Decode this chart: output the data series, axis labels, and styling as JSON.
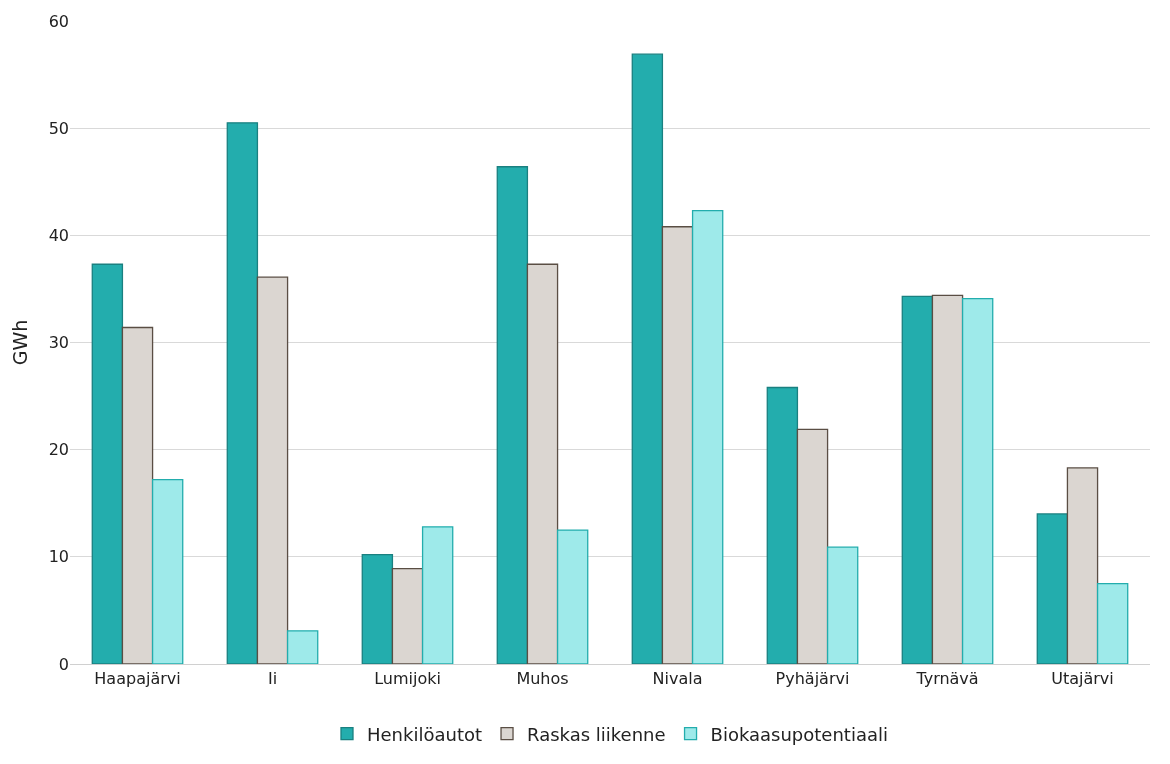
{
  "chart_data": {
    "type": "bar",
    "ylabel": "GWh",
    "categories": [
      "Haapajärvi",
      "Ii",
      "Lumijoki",
      "Muhos",
      "Nivala",
      "Pyhäjärvi",
      "Tyrnävä",
      "Utajärvi"
    ],
    "series": [
      {
        "name": "Henkilöautot",
        "color": "#23adad",
        "values": [
          37.3,
          50.5,
          10.2,
          46.4,
          56.9,
          25.8,
          34.3,
          14.0
        ]
      },
      {
        "name": "Raskas liikenne",
        "color": "#dbd6d1",
        "values": [
          31.4,
          36.1,
          8.9,
          37.3,
          40.8,
          21.9,
          34.4,
          18.3
        ]
      },
      {
        "name": "Biokaasupotentiaali",
        "color": "#9eeaea",
        "values": [
          17.2,
          3.1,
          12.8,
          12.5,
          42.3,
          10.9,
          34.1,
          7.5
        ]
      }
    ],
    "ylim": [
      0,
      60
    ],
    "yticks": [
      0,
      10,
      20,
      30,
      40,
      50,
      60
    ],
    "grid": "y",
    "legend": "bottom"
  }
}
